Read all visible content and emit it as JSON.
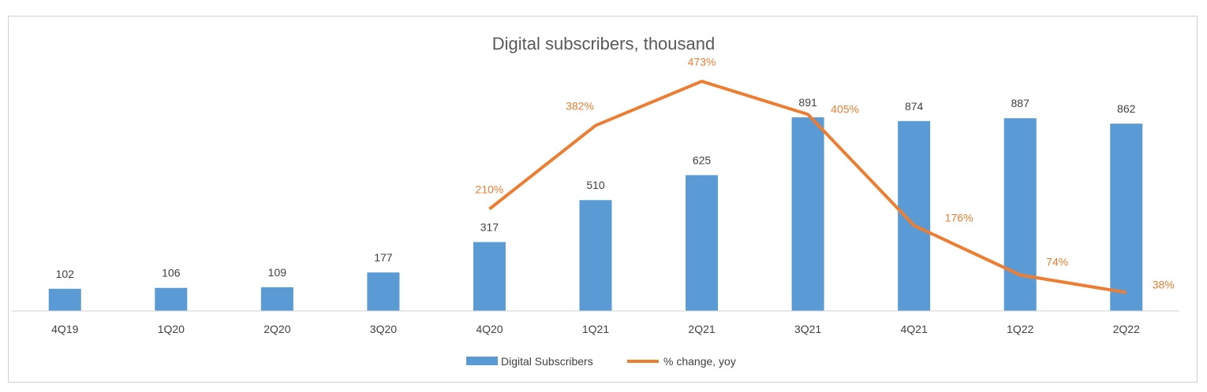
{
  "chart_data": {
    "type": "bar",
    "title": "Digital subscribers, thousand",
    "categories": [
      "4Q19",
      "1Q20",
      "2Q20",
      "3Q20",
      "4Q20",
      "1Q21",
      "2Q21",
      "3Q21",
      "4Q21",
      "1Q22",
      "2Q22"
    ],
    "series": [
      {
        "name": "Digital Subscribers",
        "type": "bar",
        "values": [
          102,
          106,
          109,
          177,
          317,
          510,
          625,
          891,
          874,
          887,
          862
        ],
        "labels": [
          "102",
          "106",
          "109",
          "177",
          "317",
          "510",
          "625",
          "891",
          "874",
          "887",
          "862"
        ],
        "color": "#5B9BD5"
      },
      {
        "name": "% change, yoy",
        "type": "line",
        "x": [
          "4Q20",
          "1Q21",
          "2Q21",
          "3Q21",
          "4Q21",
          "1Q22",
          "2Q22"
        ],
        "values": [
          210,
          382,
          473,
          405,
          176,
          74,
          38
        ],
        "labels": [
          "210%",
          "382%",
          "473%",
          "405%",
          "176%",
          "74%",
          "38%"
        ],
        "color": "#ED7D31"
      }
    ],
    "y_bar_range": [
      0,
      1000
    ],
    "y_line_range": [
      0,
      600
    ],
    "grid": false,
    "legend_position": "bottom"
  }
}
